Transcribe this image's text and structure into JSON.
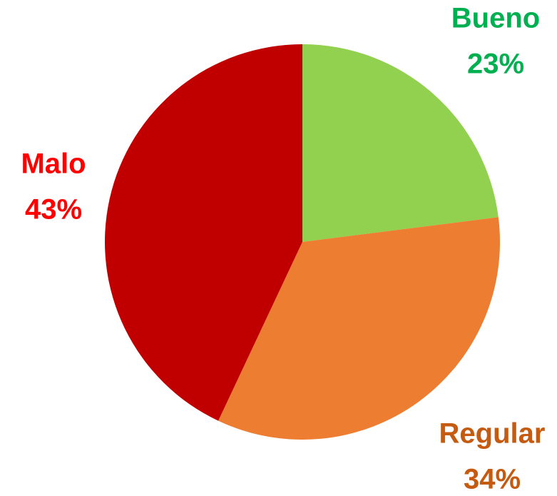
{
  "chart_data": {
    "type": "pie",
    "categories": [
      "Bueno",
      "Regular",
      "Malo"
    ],
    "values": [
      23,
      34,
      43
    ],
    "value_labels": [
      "23%",
      "34%",
      "43%"
    ],
    "colors": [
      "#92d050",
      "#ed7d31",
      "#c00000"
    ],
    "label_colors": [
      "#00b050",
      "#c55a11",
      "#ff0000"
    ]
  }
}
